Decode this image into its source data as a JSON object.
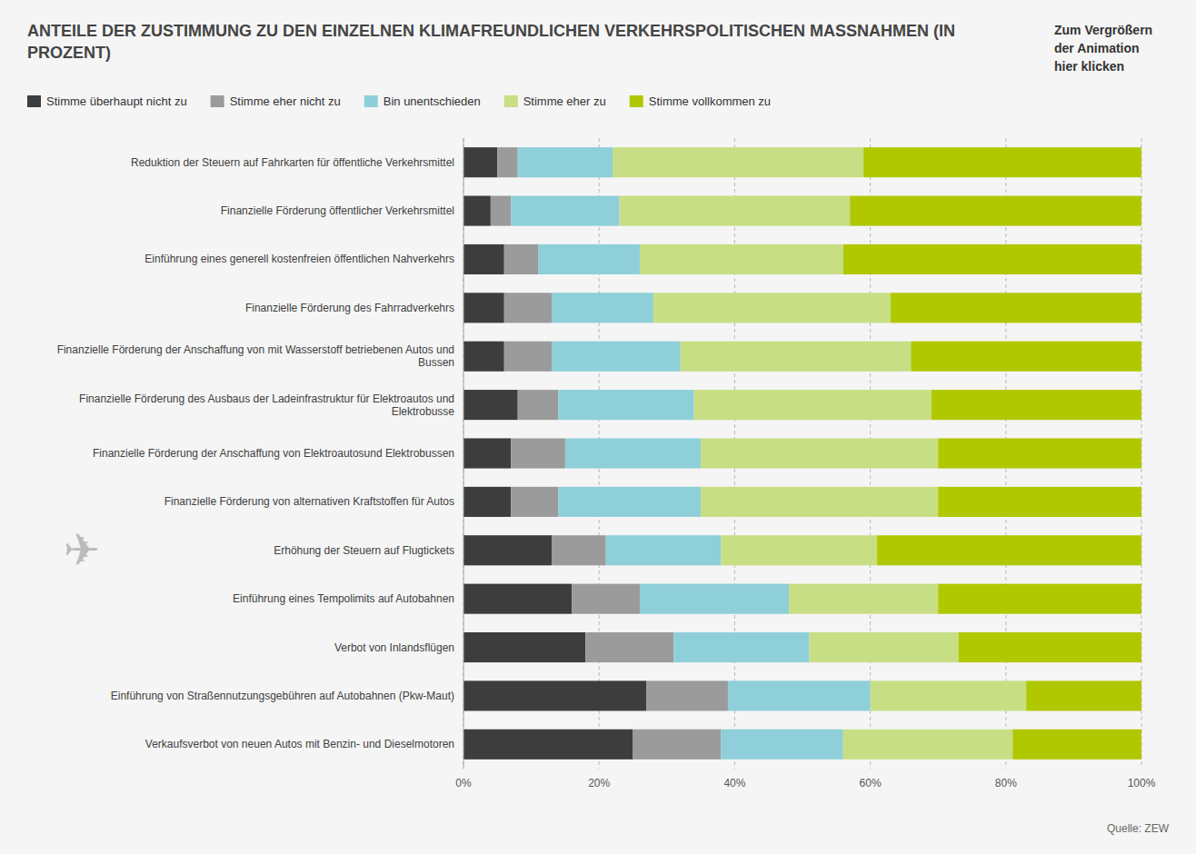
{
  "chart_data": {
    "type": "bar",
    "orientation": "horizontal",
    "stacked": true,
    "title": "ANTEILE DER ZUSTIMMUNG ZU DEN EINZELNEN KLIMAFREUNDLICHEN VERKEHRSPOLITISCHEN MASSNAHMEN (IN PROZENT)",
    "annotations": [
      "Zum Vergrößern\nder Animation\nhier klicken",
      "Quelle: ZEW",
      "✈"
    ],
    "categories": [
      "Reduktion der Steuern auf Fahrkarten für öffentliche Verkehrsmittel",
      "Finanzielle Förderung öffentlicher Verkehrsmittel",
      "Einführung eines generell kostenfreien öffentlichen Nahverkehrs",
      "Finanzielle Förderung des Fahrradverkehrs",
      "Finanzielle Förderung der Anschaffung von mit Wasserstoff betriebenen Autos und Bussen",
      "Finanziellе Förderung des Ausbaus der Ladeinfrastruktur für Elektroautos und Elektrobusse",
      "Finanzielle Förderung der Anschaffung von Elektroautosund Elektrobussen",
      "Finanzielle Förderung von alternativen Kraftstoffen für Autos",
      "Erhöhung der Steuern auf Flugtickets",
      "Einführung eines Tempolimits auf Autobahnen",
      "Verbot von Inlandsflügen",
      "Einführung von Straßennutzungsgebühren auf Autobahnen (Pkw-Maut)",
      "Verkaufsverbot von neuen Autos mit Benzin- und Dieselmotoren"
    ],
    "series": [
      {
        "name": "Stimme überhaupt nicht zu",
        "color": "#3d3d3d",
        "values": [
          5,
          4,
          6,
          6,
          6,
          8,
          7,
          7,
          13,
          16,
          18,
          27,
          25
        ]
      },
      {
        "name": "Stimme eher nicht zu",
        "color": "#9b9b9b",
        "values": [
          3,
          3,
          5,
          7,
          7,
          6,
          8,
          7,
          8,
          10,
          13,
          12,
          13
        ]
      },
      {
        "name": "Bin unentschieden",
        "color": "#8ecfda",
        "values": [
          14,
          16,
          15,
          15,
          19,
          20,
          20,
          21,
          17,
          22,
          20,
          21,
          18
        ]
      },
      {
        "name": "Stimme eher zu",
        "color": "#c8de84",
        "values": [
          37,
          34,
          30,
          35,
          34,
          35,
          35,
          35,
          23,
          22,
          22,
          23,
          25
        ]
      },
      {
        "name": "Stimme vollkommen zu",
        "color": "#b0c800",
        "values": [
          41,
          43,
          44,
          37,
          34,
          31,
          30,
          30,
          39,
          30,
          27,
          17,
          19
        ]
      }
    ],
    "xlim": [
      0,
      100
    ],
    "xticks": [
      {
        "value": 0,
        "label": "0%"
      },
      {
        "value": 20,
        "label": "20%"
      },
      {
        "value": 40,
        "label": "40%"
      },
      {
        "value": 60,
        "label": "60%"
      },
      {
        "value": 80,
        "label": "80%"
      },
      {
        "value": 100,
        "label": "100%"
      }
    ],
    "grid": true,
    "legend": "top"
  }
}
